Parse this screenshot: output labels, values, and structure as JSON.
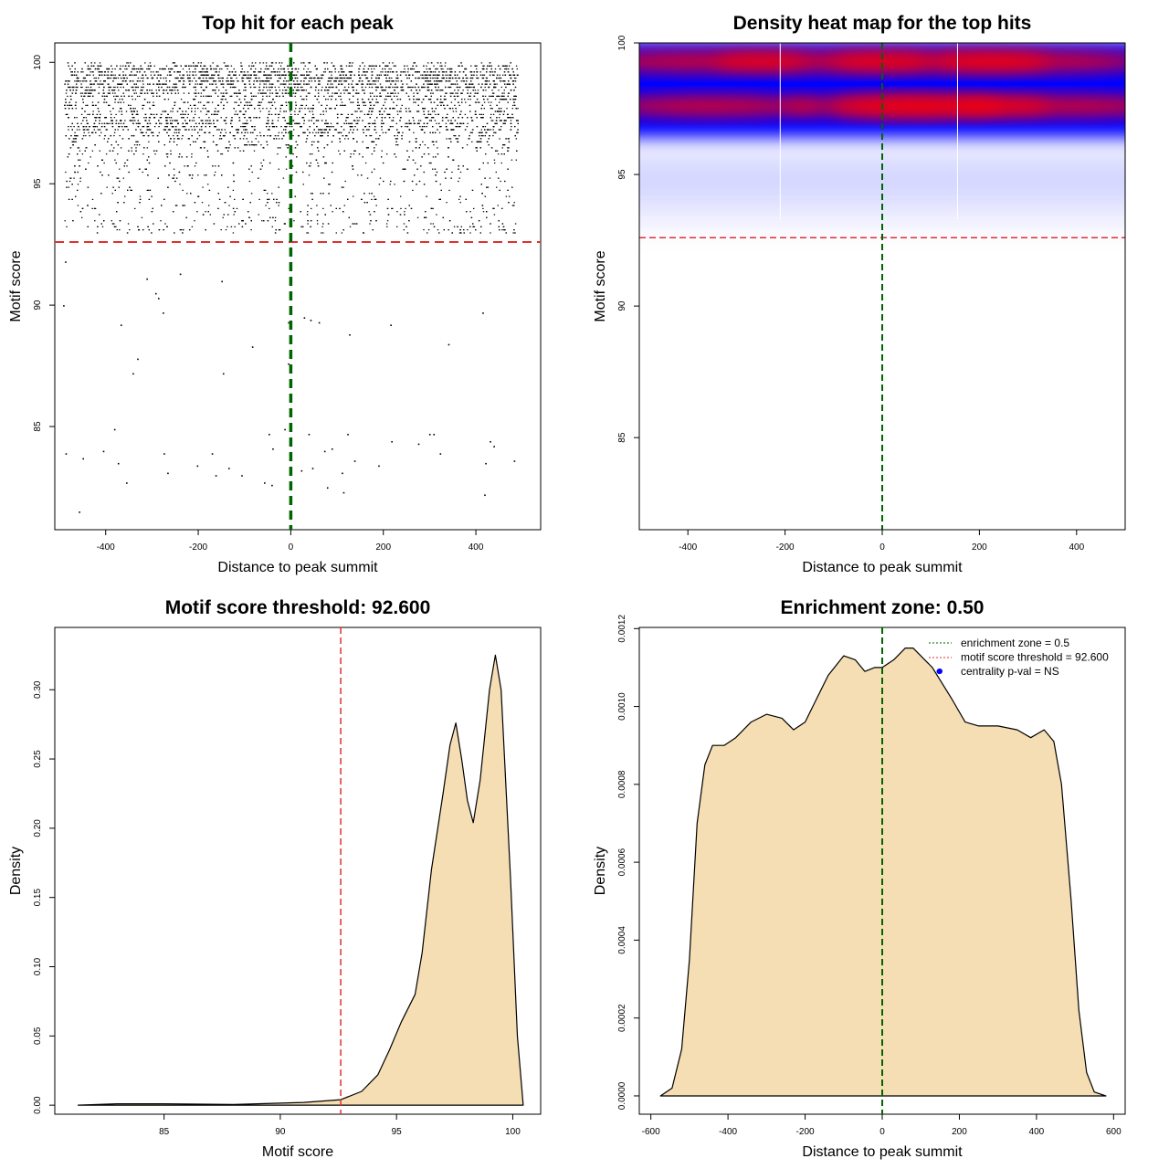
{
  "colors": {
    "fill": "#f5deb3",
    "threshold": "#e0302f",
    "zone": "#006400",
    "point": "#000000",
    "blue_dot": "#0000ff",
    "heat_low": "#0000ff",
    "heat_high": "#ff0000"
  },
  "chart_data": [
    {
      "type": "scatter",
      "title": "Top hit for each peak",
      "xlabel": "Distance to peak summit",
      "ylabel": "Motif score",
      "xlim": [
        -510,
        540
      ],
      "ylim": [
        80.75,
        100.8
      ],
      "xticks": [
        "-400",
        "-200",
        "0",
        "200",
        "400"
      ],
      "xtick_values": [
        -400,
        -200,
        0,
        200,
        400
      ],
      "yticks": [
        "85",
        "90",
        "95",
        "100"
      ],
      "ytick_values": [
        85,
        90,
        95,
        100
      ],
      "threshold": 92.6,
      "center": 0,
      "dense_region": {
        "n_points": 7000,
        "x_range": [
          -490,
          490
        ],
        "score_range": [
          92.6,
          100
        ],
        "modes": [
          99.3,
          97.6
        ]
      },
      "outliers": [
        [
          -488,
          91.8
        ],
        [
          -492,
          90
        ],
        [
          -487,
          83.9
        ],
        [
          -458,
          81.5
        ],
        [
          -450,
          83.7
        ],
        [
          -406,
          84
        ],
        [
          -382,
          84.9
        ],
        [
          -374,
          83.5
        ],
        [
          -356,
          82.7
        ],
        [
          -342,
          87.2
        ],
        [
          -332,
          87.8
        ],
        [
          -368,
          89.2
        ],
        [
          -275,
          83.9
        ],
        [
          -267,
          83.1
        ],
        [
          -203,
          83.4
        ],
        [
          -171,
          83.9
        ],
        [
          -163,
          83
        ],
        [
          -147,
          87.2
        ],
        [
          -135,
          83.3
        ],
        [
          -107,
          83
        ],
        [
          -84,
          88.3
        ],
        [
          -58,
          82.7
        ],
        [
          -48,
          84.7
        ],
        [
          -40,
          84.1
        ],
        [
          -42,
          82.6
        ],
        [
          -14,
          84.9
        ],
        [
          -6,
          87.6
        ],
        [
          0,
          82.7
        ],
        [
          22,
          83.2
        ],
        [
          38,
          84.7
        ],
        [
          46,
          83.3
        ],
        [
          60,
          89.3
        ],
        [
          72,
          84
        ],
        [
          88,
          84.1
        ],
        [
          78,
          82.5
        ],
        [
          110,
          83.1
        ],
        [
          122,
          84.7
        ],
        [
          126,
          88.8
        ],
        [
          137,
          83.6
        ],
        [
          113,
          82.3
        ],
        [
          189,
          83.4
        ],
        [
          217,
          84.4
        ],
        [
          275,
          84.3
        ],
        [
          299,
          84.7
        ],
        [
          308,
          84.7
        ],
        [
          322,
          83.9
        ],
        [
          340,
          88.4
        ],
        [
          414,
          89.7
        ],
        [
          420,
          83.5
        ],
        [
          430,
          84.4
        ],
        [
          438,
          84.2
        ],
        [
          418,
          82.2
        ],
        [
          482,
          83.6
        ],
        [
          -287,
          90.3
        ],
        [
          -293,
          90.5
        ],
        [
          -277,
          89.7
        ],
        [
          -312,
          91.1
        ],
        [
          215,
          89.2
        ],
        [
          42,
          89.4
        ],
        [
          28,
          89.5
        ],
        [
          -6,
          89.3
        ],
        [
          -150,
          91
        ],
        [
          -240,
          91.3
        ]
      ]
    },
    {
      "type": "heatmap",
      "title": "Density heat map for the top hits",
      "xlabel": "Distance to peak summit",
      "ylabel": "Motif score",
      "xlim": [
        -500,
        500
      ],
      "ylim": [
        81.5,
        100
      ],
      "xticks": [
        "-400",
        "-200",
        "0",
        "200",
        "400"
      ],
      "xtick_values": [
        -400,
        -200,
        0,
        200,
        400
      ],
      "yticks": [
        "85",
        "90",
        "95",
        "100"
      ],
      "ytick_values": [
        85,
        90,
        95,
        100
      ],
      "threshold": 92.6,
      "center": 0,
      "hot_bands": [
        {
          "score": 99.3,
          "centers": [
            -380,
            -120,
            120,
            330
          ]
        },
        {
          "score": 97.6,
          "centers": [
            -350,
            20,
            120,
            380
          ]
        }
      ],
      "artifact_lines": [
        -210,
        155
      ]
    },
    {
      "type": "area",
      "title": "Motif score threshold: 92.600",
      "xlabel": "Motif score",
      "ylabel": "Density",
      "xlim": [
        80.3,
        101.2
      ],
      "ylim": [
        -0.0065,
        0.345
      ],
      "xticks": [
        "85",
        "90",
        "95",
        "100"
      ],
      "xtick_values": [
        85,
        90,
        95,
        100
      ],
      "yticks": [
        "0.00",
        "0.05",
        "0.10",
        "0.15",
        "0.20",
        "0.25",
        "0.30"
      ],
      "ytick_values": [
        0,
        0.05,
        0.1,
        0.15,
        0.2,
        0.25,
        0.3
      ],
      "threshold": 92.6,
      "points": [
        [
          81.3,
          0
        ],
        [
          83,
          0.001
        ],
        [
          85,
          0.001
        ],
        [
          88,
          0.0005
        ],
        [
          91,
          0.002
        ],
        [
          92.6,
          0.004
        ],
        [
          93.5,
          0.01
        ],
        [
          94.2,
          0.022
        ],
        [
          94.7,
          0.04
        ],
        [
          95.2,
          0.06
        ],
        [
          95.8,
          0.08
        ],
        [
          96.1,
          0.11
        ],
        [
          96.5,
          0.17
        ],
        [
          97,
          0.225
        ],
        [
          97.3,
          0.26
        ],
        [
          97.55,
          0.276
        ],
        [
          97.8,
          0.25
        ],
        [
          98.05,
          0.22
        ],
        [
          98.3,
          0.204
        ],
        [
          98.6,
          0.235
        ],
        [
          99,
          0.3
        ],
        [
          99.25,
          0.325
        ],
        [
          99.5,
          0.3
        ],
        [
          99.9,
          0.165
        ],
        [
          100.2,
          0.05
        ],
        [
          100.45,
          0
        ]
      ]
    },
    {
      "type": "area",
      "title": "Enrichment zone: 0.50",
      "xlabel": "Distance to peak summit",
      "ylabel": "Density",
      "xlim": [
        -630,
        630
      ],
      "ylim": [
        -4.7e-05,
        0.001203
      ],
      "xticks": [
        "-600",
        "-400",
        "-200",
        "0",
        "200",
        "400",
        "600"
      ],
      "xtick_values": [
        -600,
        -400,
        -200,
        0,
        200,
        400,
        600
      ],
      "yticks": [
        "0.0000",
        "0.0002",
        "0.0004",
        "0.0006",
        "0.0008",
        "0.0010",
        "0.0012"
      ],
      "ytick_values": [
        0,
        0.0002,
        0.0004,
        0.0006,
        0.0008,
        0.001,
        0.0012
      ],
      "center": 0,
      "centrality_point": [
        148,
        0.00109
      ],
      "legend": [
        "enrichment zone = 0.5",
        "motif score threshold = 92.600",
        "centrality p-val = NS"
      ],
      "points": [
        [
          -575,
          0
        ],
        [
          -545,
          2e-05
        ],
        [
          -520,
          0.00012
        ],
        [
          -500,
          0.00035
        ],
        [
          -480,
          0.0007
        ],
        [
          -460,
          0.00085
        ],
        [
          -440,
          0.0009
        ],
        [
          -410,
          0.0009
        ],
        [
          -380,
          0.00092
        ],
        [
          -340,
          0.00096
        ],
        [
          -300,
          0.00098
        ],
        [
          -260,
          0.00097
        ],
        [
          -230,
          0.00094
        ],
        [
          -200,
          0.00096
        ],
        [
          -170,
          0.00102
        ],
        [
          -140,
          0.00108
        ],
        [
          -100,
          0.00113
        ],
        [
          -70,
          0.00112
        ],
        [
          -45,
          0.00109
        ],
        [
          -20,
          0.0011
        ],
        [
          0,
          0.0011
        ],
        [
          30,
          0.00112
        ],
        [
          60,
          0.00115
        ],
        [
          80,
          0.00115
        ],
        [
          130,
          0.0011
        ],
        [
          180,
          0.00102
        ],
        [
          215,
          0.00096
        ],
        [
          250,
          0.00095
        ],
        [
          300,
          0.00095
        ],
        [
          350,
          0.00094
        ],
        [
          385,
          0.00092
        ],
        [
          420,
          0.00094
        ],
        [
          445,
          0.00091
        ],
        [
          465,
          0.0008
        ],
        [
          490,
          0.0005
        ],
        [
          510,
          0.00022
        ],
        [
          530,
          6e-05
        ],
        [
          550,
          1e-05
        ],
        [
          580,
          0
        ]
      ]
    }
  ]
}
